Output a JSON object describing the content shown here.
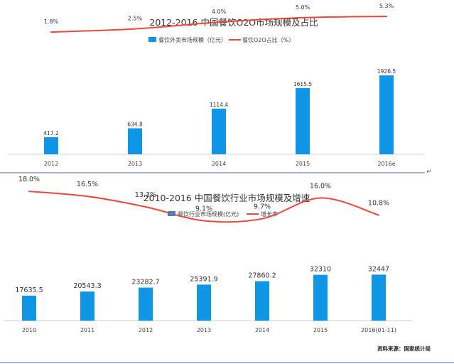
{
  "colors": {
    "bar": "#0f96e6",
    "line": "#e8493c",
    "axis": "#cfcfcf",
    "divider": "#4b6ea8"
  },
  "chart_data": [
    {
      "type": "bar",
      "title": "2012-2016 中国餐饮O2O市场规模及占比",
      "categories": [
        "2012",
        "2013",
        "2014",
        "2015",
        "2016e"
      ],
      "series": [
        {
          "name": "餐饮外卖市场规模（亿元）",
          "kind": "bar",
          "values": [
            417.2,
            634.8,
            1114.4,
            1615.5,
            1926.5
          ],
          "labels": [
            "417.2",
            "634.8",
            "1114.4",
            "1615.5",
            "1926.5"
          ]
        },
        {
          "name": "餐饮O2O占比（%）",
          "kind": "line",
          "values": [
            1.8,
            2.5,
            4.0,
            5.0,
            5.3
          ],
          "labels": [
            "1.8%",
            "2.5%",
            "4.0%",
            "5.0%",
            "5.3%"
          ]
        }
      ],
      "ylim": [
        0,
        2000
      ],
      "line_ylim": [
        -10,
        6.4
      ],
      "legend": "top-center",
      "grid": false
    },
    {
      "type": "bar",
      "title": "2010-2016 中国餐饮行业市场规模及增速",
      "categories": [
        "2010",
        "2011",
        "2012",
        "2013",
        "2014",
        "2015",
        "2016(01-11)"
      ],
      "series": [
        {
          "name": "餐饮行业市场规模(亿元)",
          "kind": "bar",
          "values": [
            17635.5,
            20543.3,
            23282.7,
            25391.9,
            27860.2,
            32310,
            32447
          ],
          "labels": [
            "17635.5",
            "20543.3",
            "23282.7",
            "25391.9",
            "27860.2",
            "32310",
            "32447"
          ]
        },
        {
          "name": "增长率",
          "kind": "line",
          "values": [
            18.0,
            16.5,
            13.3,
            9.1,
            9.7,
            16.0,
            10.8
          ],
          "labels": [
            "18.0%",
            "16.5%",
            "13.3%",
            "9.1%",
            "9.7%",
            "16.0%",
            "10.8%"
          ]
        }
      ],
      "ylim": [
        0,
        65000
      ],
      "line_ylim": [
        -16,
        23
      ],
      "legend": "top-center",
      "grid": false
    }
  ],
  "source_note": "资料来源：国家统计局"
}
